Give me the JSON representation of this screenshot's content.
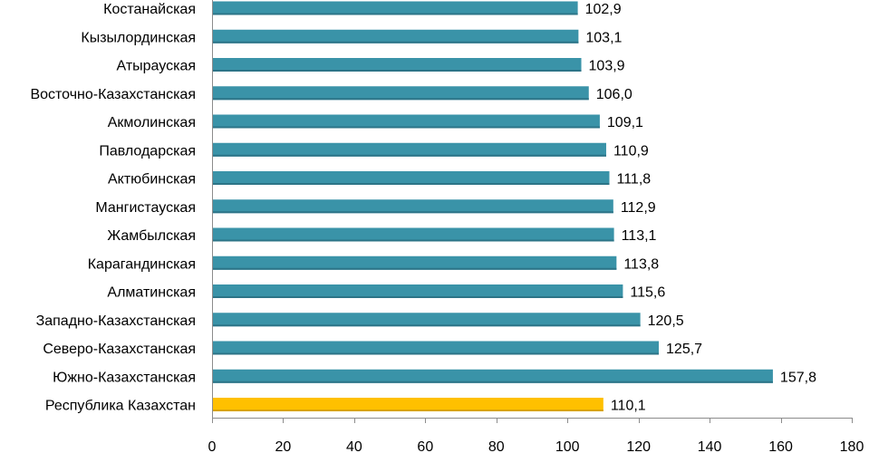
{
  "chart_data": {
    "type": "bar",
    "orientation": "horizontal",
    "categories": [
      "Костанайская",
      "Кызылординская",
      "Атырауская",
      "Восточно-Казахстанская",
      "Акмолинская",
      "Павлодарская",
      "Актюбинская",
      "Мангистауская",
      "Жамбылская",
      "Карагандинская",
      "Алматинская",
      "Западно-Казахстанская",
      "Северо-Казахстанская",
      "Южно-Казахстанская",
      "Республика Казахстан"
    ],
    "values": [
      102.9,
      103.1,
      103.9,
      106.0,
      109.1,
      110.9,
      111.8,
      112.9,
      113.1,
      113.8,
      115.6,
      120.5,
      125.7,
      157.8,
      110.1
    ],
    "value_labels": [
      "102,9",
      "103,1",
      "103,9",
      "106,0",
      "109,1",
      "110,9",
      "111,8",
      "112,9",
      "113,1",
      "113,8",
      "115,6",
      "120,5",
      "125,7",
      "157,8",
      "110,1"
    ],
    "highlight_category": "Республика Казахстан",
    "colors": {
      "bar": "#3a93a8",
      "highlight": "#ffc000"
    },
    "xlim": [
      0,
      180
    ],
    "xticks": [
      "0",
      "20",
      "40",
      "60",
      "80",
      "100",
      "120",
      "140",
      "160",
      "180"
    ],
    "title": "",
    "xlabel": "",
    "ylabel": "",
    "grid": false,
    "legend": "none"
  }
}
